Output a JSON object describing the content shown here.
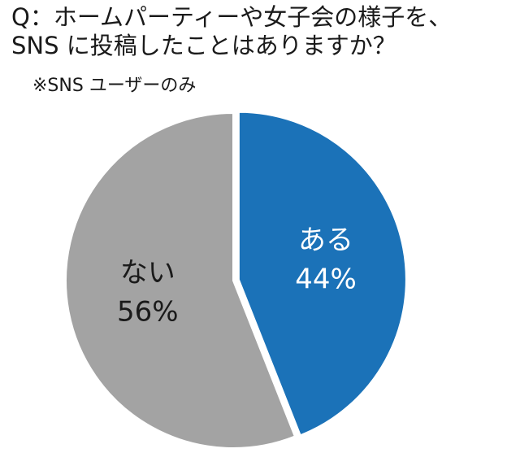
{
  "header": {
    "title_line1": "Q：ホームパーティーや女子会の様子を、",
    "title_line2": "SNS に投稿したことはありますか？",
    "subtitle": "※SNS ユーザーのみ"
  },
  "chart_data": {
    "type": "pie",
    "title": "Q：ホームパーティーや女子会の様子を、SNS に投稿したことはありますか？",
    "subtitle": "※SNS ユーザーのみ",
    "slices": [
      {
        "name": "ある",
        "value": 44,
        "label": "44%",
        "color": "#1b72b8",
        "text_color": "#ffffff"
      },
      {
        "name": "ない",
        "value": 56,
        "label": "56%",
        "color": "#a3a3a3",
        "text_color": "#1a1a1a"
      }
    ],
    "start_angle_deg": 0,
    "direction": "clockwise",
    "exploded": "ある"
  }
}
